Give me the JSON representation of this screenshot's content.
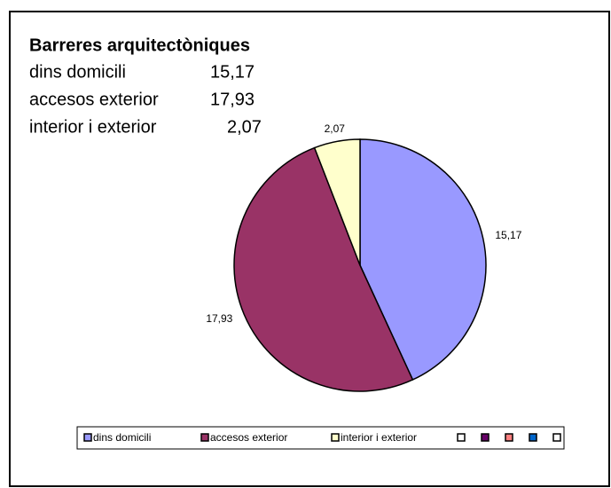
{
  "chart_data": {
    "type": "pie",
    "title": "Barreres arquitectòniques",
    "categories": [
      "dins domicili",
      "accesos exterior",
      "interior i exterior"
    ],
    "values": [
      15.17,
      17.93,
      2.07
    ],
    "value_labels": [
      "15,17",
      "17,93",
      "2,07"
    ],
    "colors": [
      "#9999ff",
      "#993366",
      "#ffffcc"
    ]
  }
}
